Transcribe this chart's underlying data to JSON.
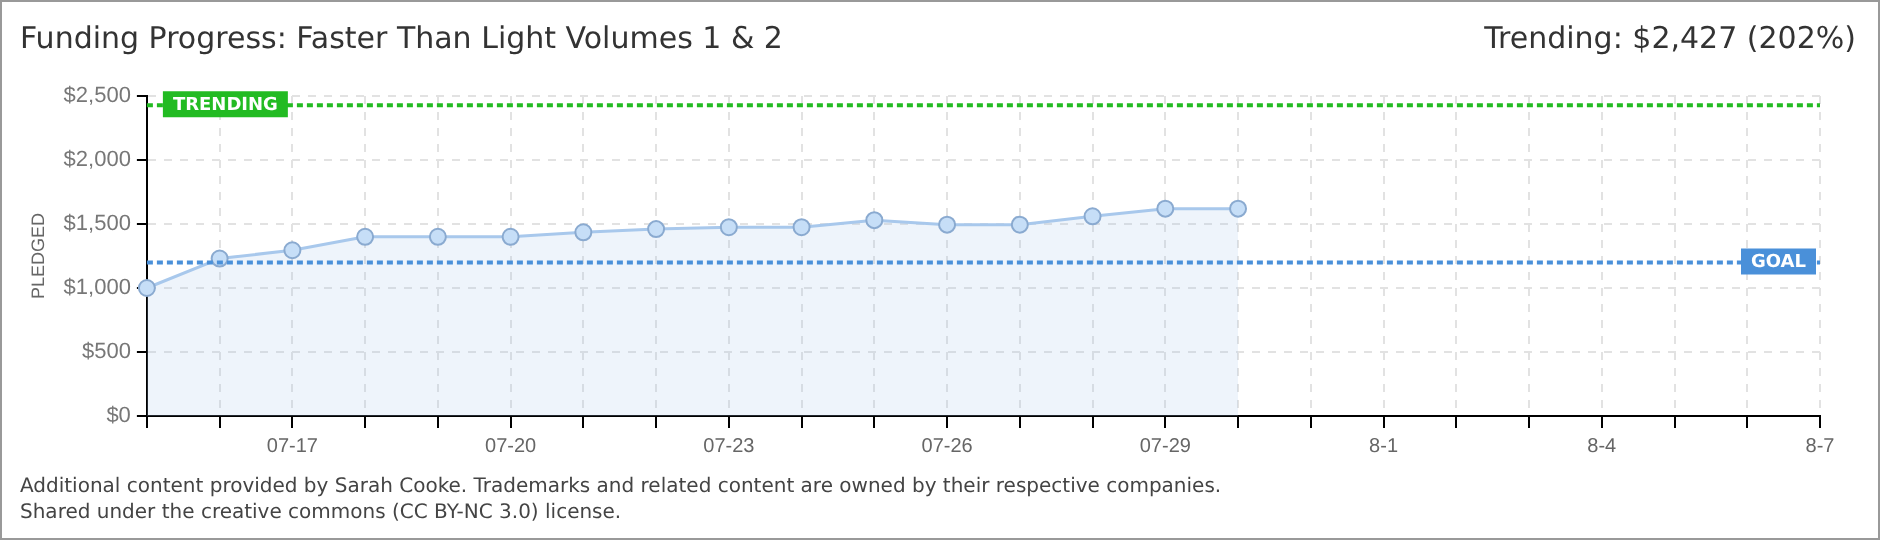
{
  "chart_data": {
    "type": "area",
    "title": "Funding Progress: Faster Than Light Volumes 1 & 2",
    "ylabel": "PLEDGED",
    "categories": [
      null,
      null,
      "07-17",
      null,
      null,
      "07-20",
      null,
      null,
      "07-23",
      null,
      null,
      "07-26",
      null,
      null,
      "07-29",
      null,
      null,
      "8-1",
      null,
      null,
      "8-4",
      null,
      null,
      "8-7"
    ],
    "series": [
      {
        "color": "#a8c8ec",
        "values": [
          1000,
          1230,
          1295,
          1400,
          1400,
          1400,
          1435,
          1460,
          1475,
          1475,
          1530,
          1495,
          1495,
          1560,
          1620,
          1620,
          null,
          null,
          null,
          null,
          null,
          null,
          null,
          null
        ]
      }
    ],
    "ylim": [
      0,
      2500
    ],
    "yticks": [
      {
        "value": 0,
        "label": "$0"
      },
      {
        "value": 500,
        "label": "$500"
      },
      {
        "value": 1000,
        "label": "$1,000"
      },
      {
        "value": 1500,
        "label": "$1,500"
      },
      {
        "value": 2000,
        "label": "$2,000"
      },
      {
        "value": 2500,
        "label": "$2,500"
      }
    ],
    "ref_lines": [
      {
        "axis": "y",
        "value": 1200,
        "label": "GOAL",
        "color": "#4a90d9",
        "line_style": "dotted"
      },
      {
        "axis": "y",
        "value": 2427,
        "label": "TRENDING",
        "color": "#22bb22",
        "line_style": "dotted"
      }
    ],
    "annotations": [
      "Trending: $2,427 (202%)",
      "Additional content provided by Sarah Cooke. Trademarks and related content are owned by their respective companies.",
      "Shared under the creative commons (CC BY-NC 3.0) license."
    ],
    "grid": true,
    "legend": false,
    "marker": "circle",
    "line_style": "solid"
  }
}
